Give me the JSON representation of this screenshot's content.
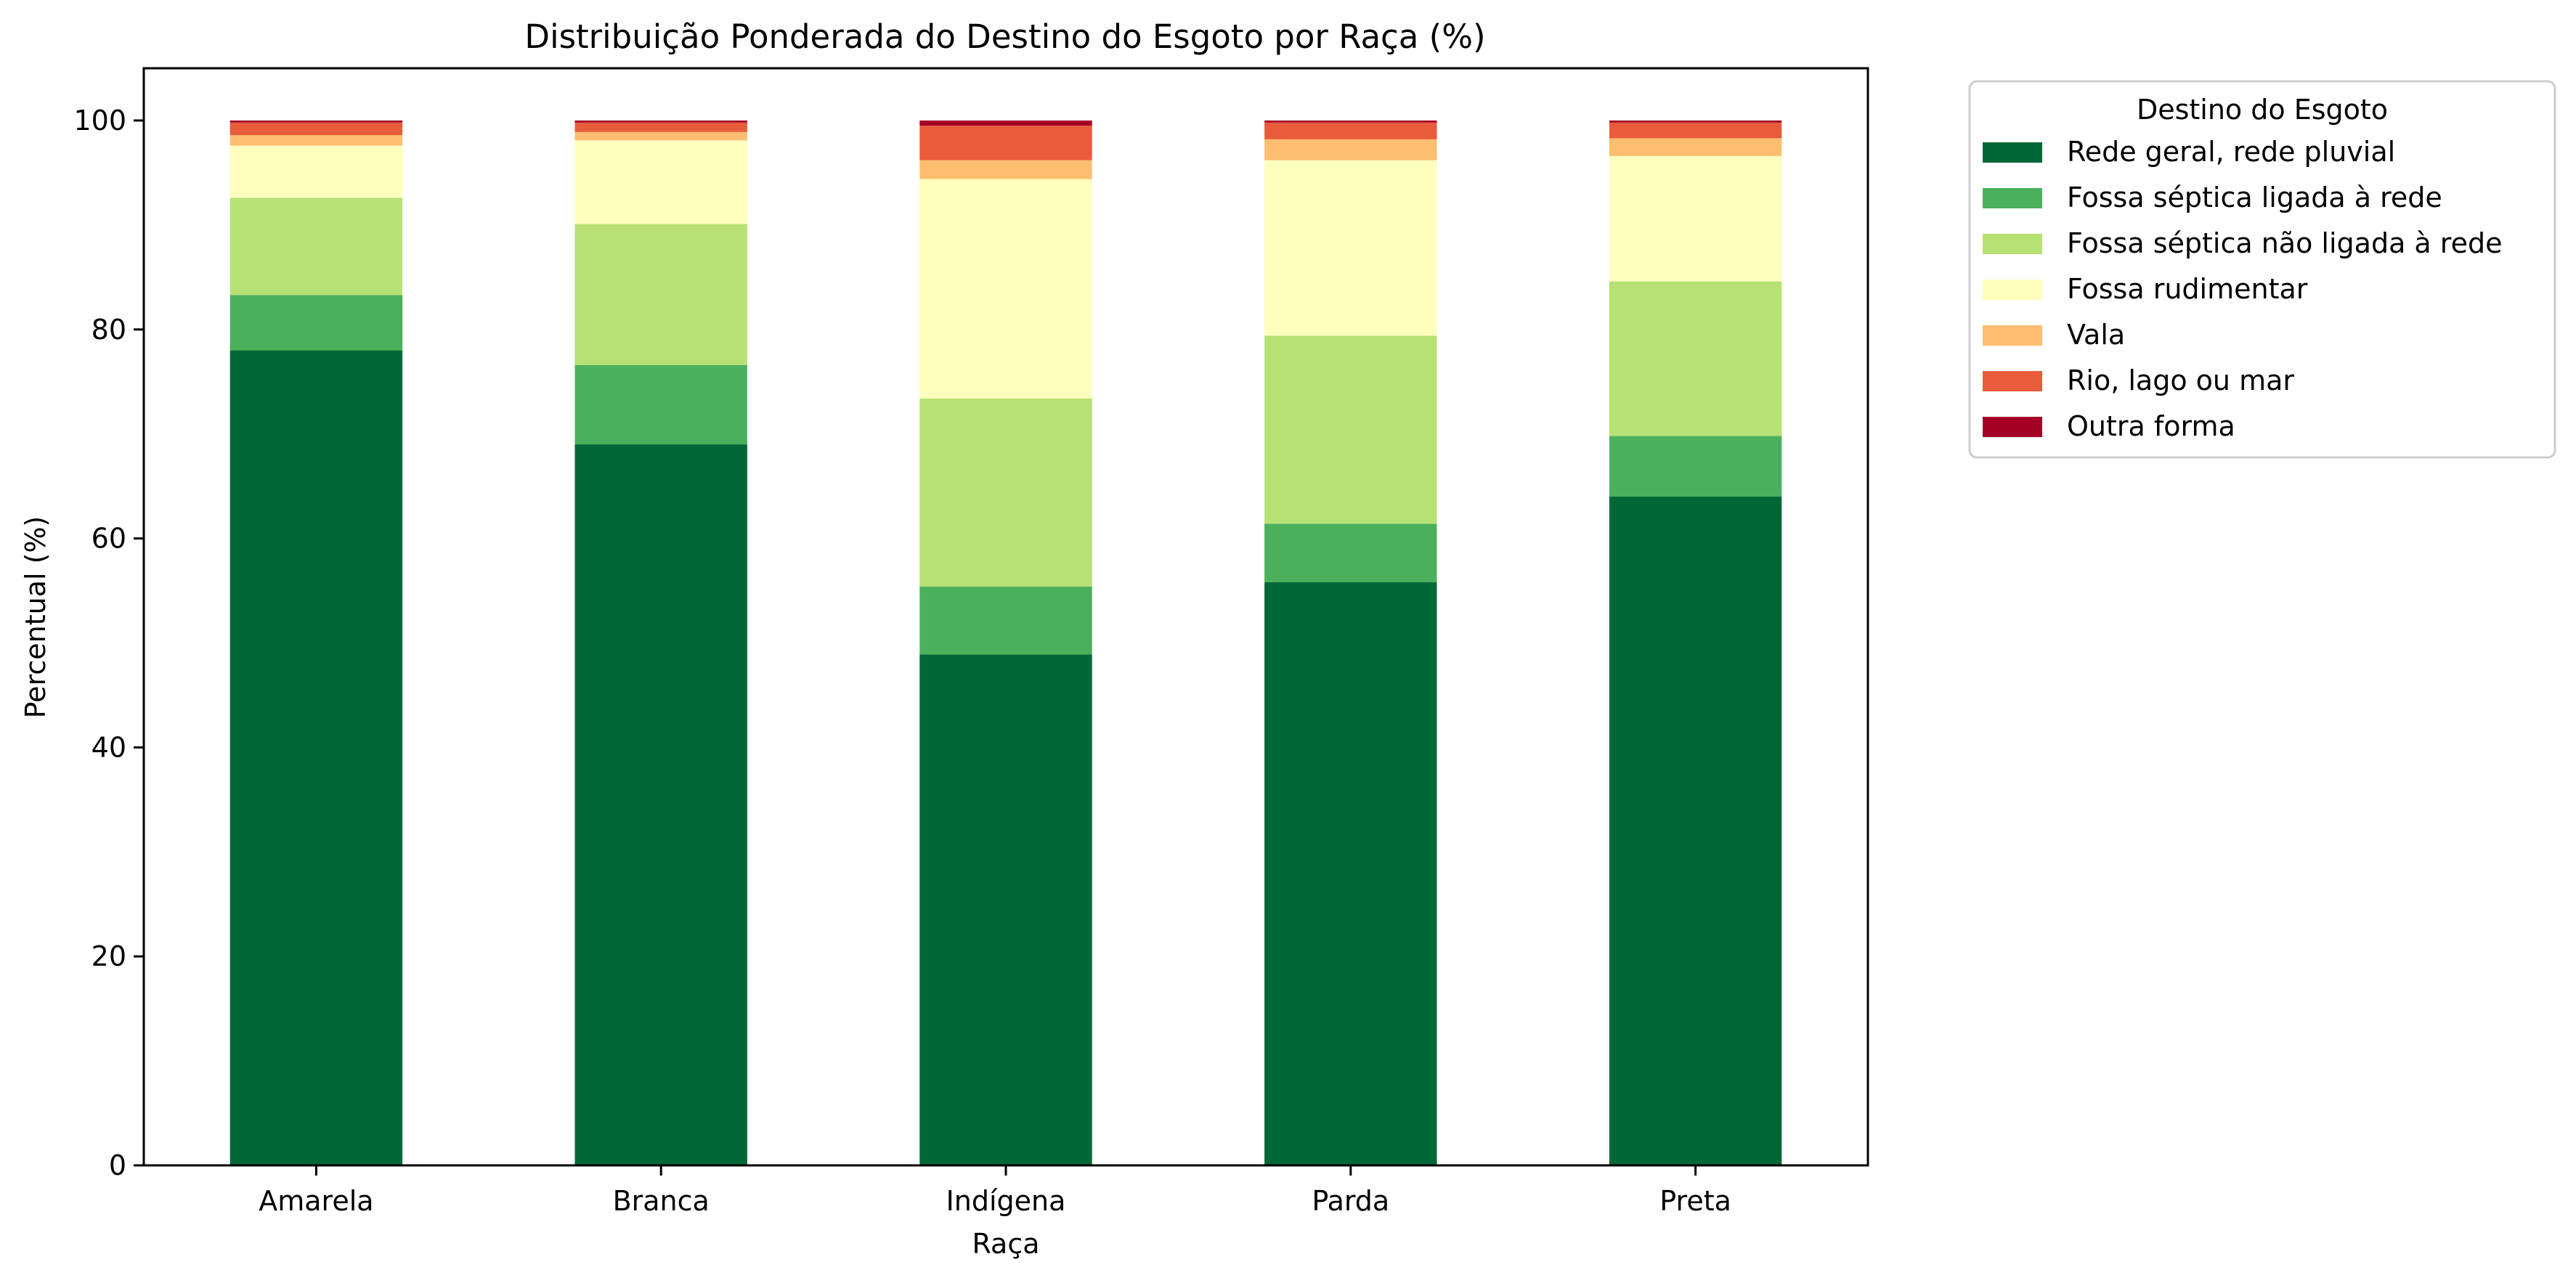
{
  "chart_data": {
    "type": "bar",
    "stacked": true,
    "title": "Distribuição Ponderada do Destino do Esgoto por Raça (%)",
    "xlabel": "Raça",
    "ylabel": "Percentual (%)",
    "ylim": [
      0,
      105
    ],
    "yticks": [
      0,
      20,
      40,
      60,
      80,
      100
    ],
    "categories": [
      "Amarela",
      "Branca",
      "Indígena",
      "Parda",
      "Preta"
    ],
    "legend": {
      "title": "Destino do Esgoto",
      "placement": "outside-upper-right"
    },
    "grid": false,
    "series": [
      {
        "name": "Rede geral, rede pluvial",
        "color": "#006837",
        "values": [
          78.0,
          69.0,
          48.9,
          55.8,
          64.0
        ]
      },
      {
        "name": "Fossa séptica ligada à rede",
        "color": "#4bb05c",
        "values": [
          5.3,
          7.6,
          6.5,
          5.6,
          5.8
        ]
      },
      {
        "name": "Fossa séptica não ligada à rede",
        "color": "#b7e075",
        "values": [
          9.3,
          13.5,
          18.0,
          18.0,
          14.8
        ]
      },
      {
        "name": "Fossa rudimentar",
        "color": "#fefebd",
        "values": [
          5.0,
          8.0,
          21.0,
          16.8,
          12.0
        ]
      },
      {
        "name": "Vala",
        "color": "#fdbe6f",
        "values": [
          1.0,
          0.8,
          1.8,
          2.0,
          1.7
        ]
      },
      {
        "name": "Rio, lago ou mar",
        "color": "#e95c3b",
        "values": [
          1.2,
          0.9,
          3.3,
          1.6,
          1.5
        ]
      },
      {
        "name": "Outra forma",
        "color": "#a50026",
        "values": [
          0.2,
          0.2,
          0.5,
          0.2,
          0.2
        ]
      }
    ]
  }
}
